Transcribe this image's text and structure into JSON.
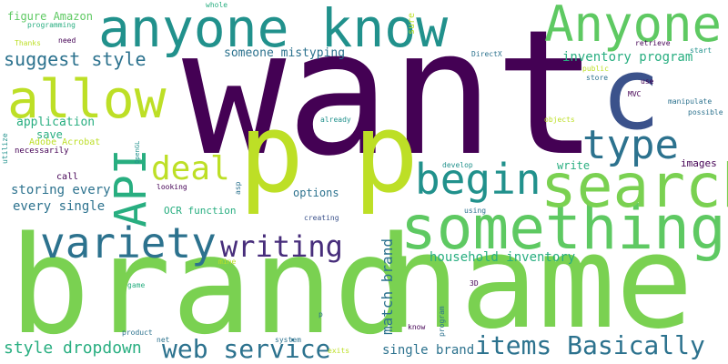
{
  "colors": {
    "background": "#ffffff",
    "palette": [
      "#440154",
      "#3b528b",
      "#2c728e",
      "#21918c",
      "#28ae80",
      "#5ec962",
      "#7ad151",
      "#bddf26",
      "#fde725"
    ]
  },
  "words": [
    {
      "text": "want",
      "color": "#440154"
    },
    {
      "text": "brand",
      "color": "#7ad151"
    },
    {
      "text": "name",
      "color": "#7ad151"
    },
    {
      "text": "anyone know",
      "color": "#21918c"
    },
    {
      "text": "Anyone",
      "color": "#5ec962"
    },
    {
      "text": "something",
      "color": "#5ec962"
    },
    {
      "text": "p",
      "color": "#bddf26"
    },
    {
      "text": "p",
      "color": "#bddf26"
    },
    {
      "text": "allow",
      "color": "#bddf26"
    },
    {
      "text": "c",
      "color": "#3b528b"
    },
    {
      "text": "search",
      "color": "#7ad151"
    },
    {
      "text": "begin",
      "color": "#21918c"
    },
    {
      "text": "type",
      "color": "#2c728e"
    },
    {
      "text": "variety",
      "color": "#2c728e"
    },
    {
      "text": "API",
      "color": "#28ae80"
    },
    {
      "text": "writing",
      "color": "#472d7b"
    },
    {
      "text": "deal",
      "color": "#bddf26"
    },
    {
      "text": "web service",
      "color": "#2c728e"
    },
    {
      "text": "items Basically",
      "color": "#2c728e"
    },
    {
      "text": "suggest style",
      "color": "#2c728e"
    },
    {
      "text": "inventory program",
      "color": "#28ae80"
    },
    {
      "text": "style dropdown",
      "color": "#28ae80"
    },
    {
      "text": "match brand",
      "color": "#2c728e"
    },
    {
      "text": "household inventory",
      "color": "#28ae80"
    },
    {
      "text": "single brand",
      "color": "#2c728e"
    },
    {
      "text": "storing every",
      "color": "#2c728e"
    },
    {
      "text": "every single",
      "color": "#2c728e"
    },
    {
      "text": "someone mistyping",
      "color": "#2c728e"
    },
    {
      "text": "figure Amazon",
      "color": "#5ec962"
    },
    {
      "text": "application",
      "color": "#28ae80"
    },
    {
      "text": "save",
      "color": "#28ae80"
    },
    {
      "text": "options",
      "color": "#2c728e"
    },
    {
      "text": "write",
      "color": "#28ae80"
    },
    {
      "text": "images",
      "color": "#440154"
    },
    {
      "text": "OCR function",
      "color": "#28ae80"
    },
    {
      "text": "Adobe Acrobat",
      "color": "#bddf26"
    },
    {
      "text": "necessarily",
      "color": "#440154"
    },
    {
      "text": "call",
      "color": "#440154"
    },
    {
      "text": "looking",
      "color": "#440154"
    },
    {
      "text": "creating",
      "color": "#3b528b"
    },
    {
      "text": "develop",
      "color": "#21918c"
    },
    {
      "text": "using",
      "color": "#2c728e"
    },
    {
      "text": "whole",
      "color": "#28ae80"
    },
    {
      "text": "sure",
      "color": "#bddf26"
    },
    {
      "text": "programming",
      "color": "#28ae80"
    },
    {
      "text": "Thanks",
      "color": "#bddf26"
    },
    {
      "text": "need",
      "color": "#440154"
    },
    {
      "text": "DirectX",
      "color": "#2c728e"
    },
    {
      "text": "public",
      "color": "#bddf26"
    },
    {
      "text": "store",
      "color": "#2c728e"
    },
    {
      "text": "use",
      "color": "#440154"
    },
    {
      "text": "MVC",
      "color": "#440154"
    },
    {
      "text": "manipulate",
      "color": "#2c728e"
    },
    {
      "text": "possible",
      "color": "#2c728e"
    },
    {
      "text": "retrieve",
      "color": "#440154"
    },
    {
      "text": "start",
      "color": "#21918c"
    },
    {
      "text": "objects",
      "color": "#bddf26"
    },
    {
      "text": "already",
      "color": "#21918c"
    },
    {
      "text": "utilize",
      "color": "#21918c"
    },
    {
      "text": "OpenGL",
      "color": "#21918c"
    },
    {
      "text": "asp",
      "color": "#2c728e"
    },
    {
      "text": "mine",
      "color": "#bddf26"
    },
    {
      "text": "game",
      "color": "#28ae80"
    },
    {
      "text": "product",
      "color": "#2c728e"
    },
    {
      "text": "net",
      "color": "#2c728e"
    },
    {
      "text": "system",
      "color": "#2c728e"
    },
    {
      "text": "exits",
      "color": "#bddf26"
    },
    {
      "text": "know",
      "color": "#440154"
    },
    {
      "text": "program",
      "color": "#2c728e"
    },
    {
      "text": "3D",
      "color": "#440154"
    },
    {
      "text": "p",
      "color": "#2c728e"
    }
  ]
}
